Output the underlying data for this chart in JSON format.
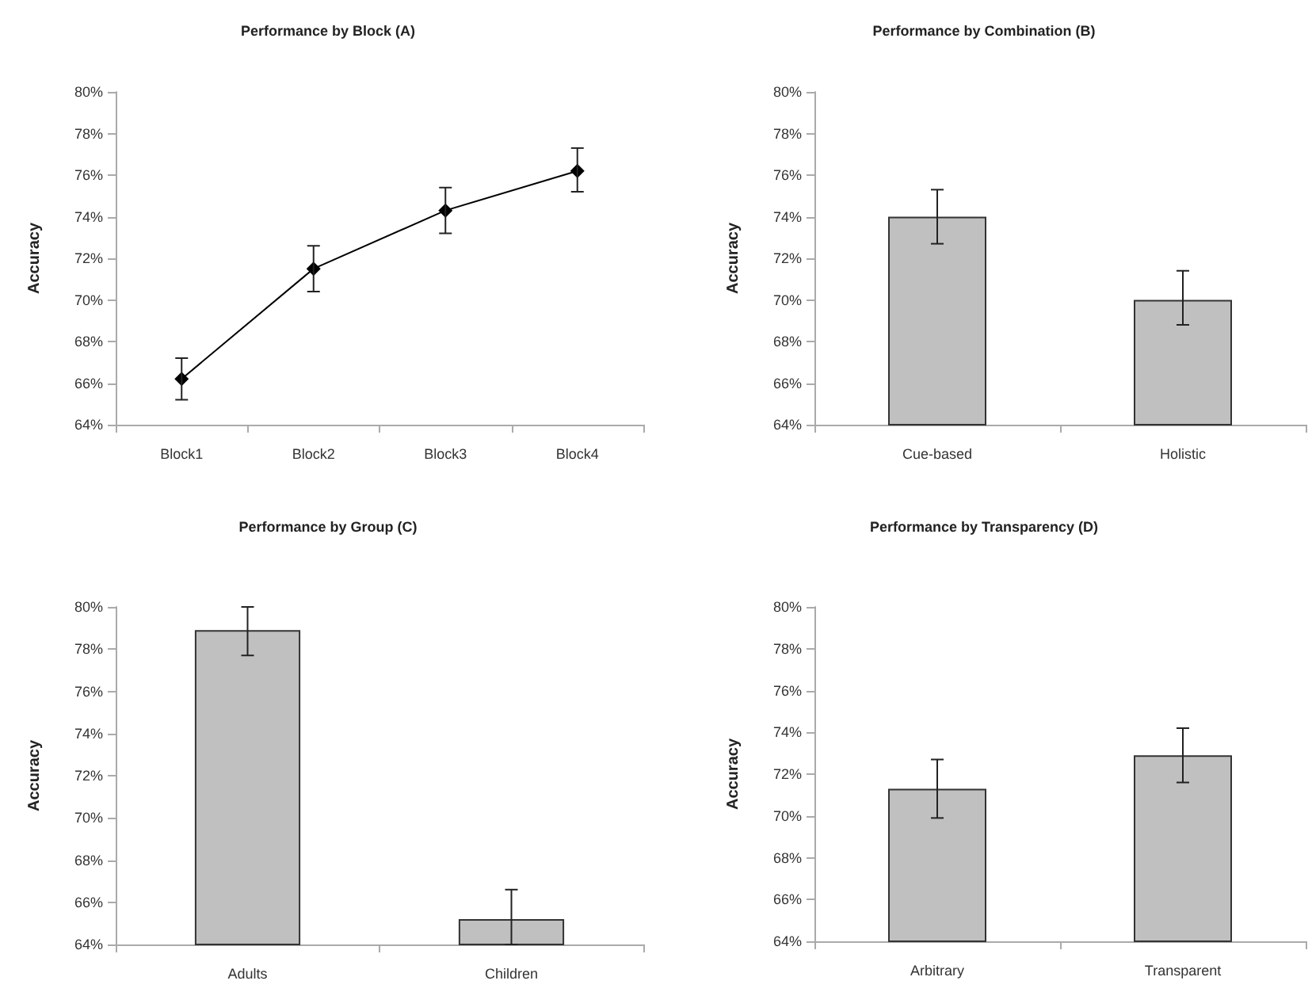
{
  "chart_data": [
    {
      "type": "line",
      "title": "Performance by Block (A)",
      "ylabel": "Accuracy",
      "categories": [
        "Block1",
        "Block2",
        "Block3",
        "Block4"
      ],
      "series": [
        {
          "color": "#000000",
          "values": [
            66.2,
            71.5,
            74.3,
            76.2
          ],
          "errors": [
            [
              65.2,
              67.2
            ],
            [
              70.4,
              72.6
            ],
            [
              73.2,
              75.4
            ],
            [
              75.2,
              77.3
            ]
          ]
        }
      ],
      "ylim": [
        64,
        80
      ],
      "yticks": [
        {
          "value": 64,
          "label": "64%"
        },
        {
          "value": 66,
          "label": "66%"
        },
        {
          "value": 68,
          "label": "68%"
        },
        {
          "value": 70,
          "label": "70%"
        },
        {
          "value": 72,
          "label": "72%"
        },
        {
          "value": 74,
          "label": "74%"
        },
        {
          "value": 76,
          "label": "76%"
        },
        {
          "value": 78,
          "label": "78%"
        },
        {
          "value": 80,
          "label": "80%"
        }
      ],
      "marker": "diamond",
      "line_style": "solid",
      "grid": false
    },
    {
      "type": "bar",
      "title": "Performance by Combination (B)",
      "ylabel": "Accuracy",
      "categories": [
        "Cue-based",
        "Holistic"
      ],
      "series": [
        {
          "color": "#c0c0c0",
          "values": [
            74.0,
            70.0
          ],
          "errors": [
            [
              72.7,
              75.3
            ],
            [
              68.8,
              71.4
            ]
          ]
        }
      ],
      "ylim": [
        64,
        80
      ],
      "yticks": [
        {
          "value": 64,
          "label": "64%"
        },
        {
          "value": 66,
          "label": "66%"
        },
        {
          "value": 68,
          "label": "68%"
        },
        {
          "value": 70,
          "label": "70%"
        },
        {
          "value": 72,
          "label": "72%"
        },
        {
          "value": 74,
          "label": "74%"
        },
        {
          "value": 76,
          "label": "76%"
        },
        {
          "value": 78,
          "label": "78%"
        },
        {
          "value": 80,
          "label": "80%"
        }
      ],
      "grid": false
    },
    {
      "type": "bar",
      "title": "Performance by Group (C)",
      "ylabel": "Accuracy",
      "categories": [
        "Adults",
        "Children"
      ],
      "series": [
        {
          "color": "#c0c0c0",
          "values": [
            78.9,
            65.2
          ],
          "errors": [
            [
              77.7,
              80.0
            ],
            [
              64.0,
              66.6
            ]
          ]
        }
      ],
      "ylim": [
        64,
        80
      ],
      "yticks": [
        {
          "value": 64,
          "label": "64%"
        },
        {
          "value": 66,
          "label": "66%"
        },
        {
          "value": 68,
          "label": "68%"
        },
        {
          "value": 70,
          "label": "70%"
        },
        {
          "value": 72,
          "label": "72%"
        },
        {
          "value": 74,
          "label": "74%"
        },
        {
          "value": 76,
          "label": "76%"
        },
        {
          "value": 78,
          "label": "78%"
        },
        {
          "value": 80,
          "label": "80%"
        }
      ],
      "grid": false
    },
    {
      "type": "bar",
      "title": "Performance by Transparency (D)",
      "ylabel": "Accuracy",
      "categories": [
        "Arbitrary",
        "Transparent"
      ],
      "series": [
        {
          "color": "#c0c0c0",
          "values": [
            71.3,
            72.9
          ],
          "errors": [
            [
              69.9,
              72.7
            ],
            [
              71.6,
              74.2
            ]
          ]
        }
      ],
      "ylim": [
        64,
        80
      ],
      "yticks": [
        {
          "value": 64,
          "label": "64%"
        },
        {
          "value": 66,
          "label": "66%"
        },
        {
          "value": 68,
          "label": "68%"
        },
        {
          "value": 70,
          "label": "70%"
        },
        {
          "value": 72,
          "label": "72%"
        },
        {
          "value": 74,
          "label": "74%"
        },
        {
          "value": 76,
          "label": "76%"
        },
        {
          "value": 78,
          "label": "78%"
        },
        {
          "value": 80,
          "label": "80%"
        }
      ],
      "grid": false
    }
  ]
}
